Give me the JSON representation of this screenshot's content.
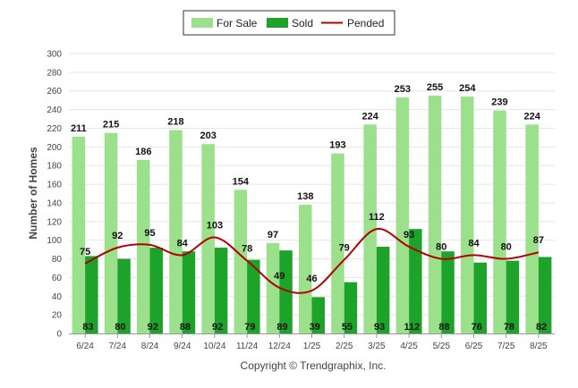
{
  "chart_data": {
    "type": "bar",
    "ylabel": "Number of Homes",
    "ylim": [
      0,
      300
    ],
    "ytick_step": 20,
    "grid": true,
    "legend_position": "top-center",
    "credit": "Copyright © Trendgraphix, Inc.",
    "categories": [
      "6/24",
      "7/24",
      "8/24",
      "9/24",
      "10/24",
      "11/24",
      "12/24",
      "1/25",
      "2/25",
      "3/25",
      "4/25",
      "5/25",
      "6/25",
      "7/25",
      "8/25"
    ],
    "series": [
      {
        "name": "For Sale",
        "type": "bar",
        "color": "#9be08a",
        "values": [
          211,
          215,
          186,
          218,
          203,
          154,
          97,
          138,
          193,
          224,
          253,
          255,
          254,
          239,
          224
        ]
      },
      {
        "name": "Sold",
        "type": "bar",
        "color": "#1ea32a",
        "values": [
          83,
          80,
          92,
          88,
          92,
          79,
          89,
          39,
          55,
          93,
          112,
          88,
          76,
          78,
          82
        ]
      },
      {
        "name": "Pended",
        "type": "line",
        "color": "#b30000",
        "values": [
          75,
          92,
          95,
          84,
          103,
          78,
          49,
          46,
          79,
          112,
          93,
          80,
          84,
          80,
          87
        ]
      }
    ]
  }
}
